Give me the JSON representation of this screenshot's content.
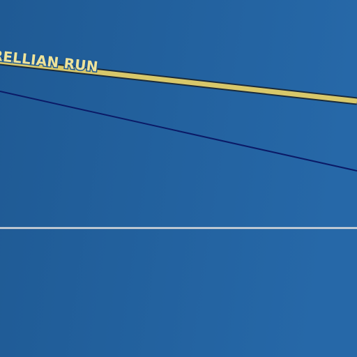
{
  "map": {
    "colors": {
      "background_light": "#2668a8",
      "background_dark": "#1f5a94",
      "major_route_fill": "#d8c86a",
      "major_route_casing": "#1a2a3a",
      "minor_route": "#0b1a66",
      "boundary_line": "#dcdcdc",
      "label_text": "#efe39a"
    },
    "major_route": {
      "label": "RELLIAN RUN"
    }
  }
}
